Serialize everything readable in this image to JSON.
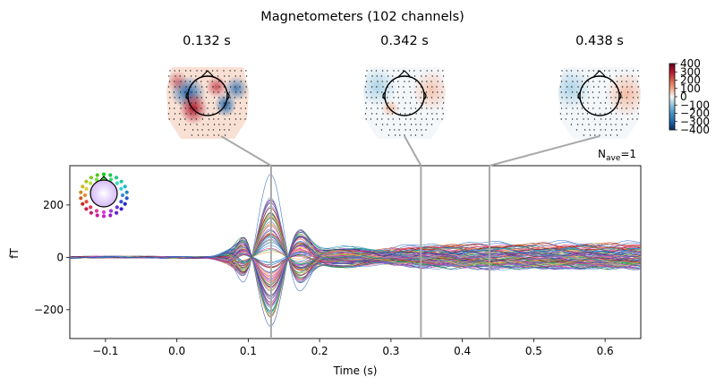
{
  "chart_data": {
    "type": "line",
    "suptitle": "Magnetometers (102 channels)",
    "topomap_times": [
      "0.132 s",
      "0.342 s",
      "0.438 s"
    ],
    "topomap_time_values": [
      0.132,
      0.342,
      0.438
    ],
    "colorbar": {
      "ticks": [
        "400",
        "300",
        "200",
        "100",
        "0",
        "−100",
        "−200",
        "−300",
        "−400"
      ],
      "range": [
        -400,
        400
      ],
      "colors": [
        "#053061",
        "#2166ac",
        "#4393c3",
        "#92c5de",
        "#f7f7f7",
        "#f4a582",
        "#d6604d",
        "#b2182b",
        "#67001f"
      ]
    },
    "nave_label": "N",
    "nave_sub": "ave",
    "nave_value": "=1",
    "xlabel": "Time (s)",
    "ylabel": "fT",
    "xlim": [
      -0.15,
      0.65
    ],
    "ylim": [
      -310,
      350
    ],
    "xticks": [
      -0.1,
      0.0,
      0.1,
      0.2,
      0.3,
      0.4,
      0.5,
      0.6
    ],
    "xtick_labels": [
      "−0.1",
      "0.0",
      "0.1",
      "0.2",
      "0.3",
      "0.4",
      "0.5",
      "0.6"
    ],
    "yticks": [
      -200,
      0,
      200
    ],
    "ytick_labels": [
      "−200",
      "0",
      "200"
    ],
    "n_channels": 102,
    "peaks_sample": [
      {
        "color": "#3b6fc6",
        "peak": 320,
        "late": 55
      },
      {
        "color": "#e64ea0",
        "peak": -265,
        "late": -40
      },
      {
        "color": "#f08a2a",
        "peak": 200,
        "late": 20
      },
      {
        "color": "#2e9e4f",
        "peak": -120,
        "late": 10
      },
      {
        "color": "#9b3fb5",
        "peak": -190,
        "late": -25
      },
      {
        "color": "#c0392b",
        "peak": 120,
        "late": 30
      }
    ]
  }
}
